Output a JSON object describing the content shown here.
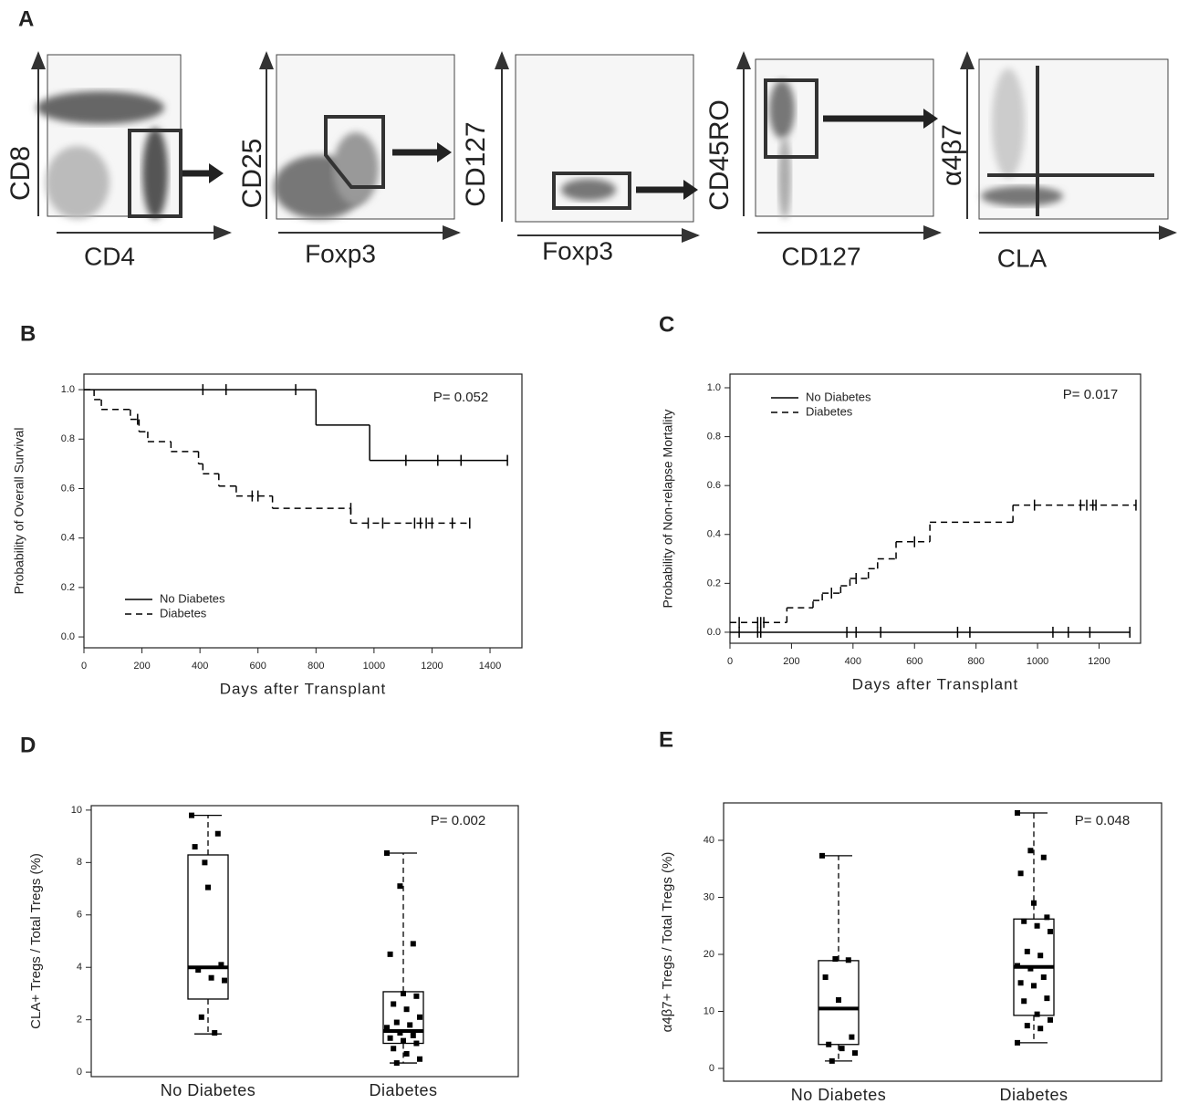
{
  "panel_a": {
    "panel": "A",
    "plots": [
      {
        "x_label": "CD4",
        "y_label": "CD8"
      },
      {
        "x_label": "Foxp3",
        "y_label": "CD25"
      },
      {
        "x_label": "Foxp3",
        "y_label": "CD127"
      },
      {
        "x_label": "CD127",
        "y_label": "CD45RO"
      },
      {
        "x_label": "CLA",
        "y_label": "α4β7"
      }
    ]
  },
  "chart_data": [
    {
      "type": "step",
      "panel": "B",
      "x_label": "Days after Transplant",
      "y_label": "Probability of Overall Survival",
      "annotation": "P= 0.052",
      "legend": "lower left",
      "xlim": [
        0,
        1510
      ],
      "ylim": [
        -0.044,
        1.063
      ],
      "xticks": [
        0,
        200,
        400,
        600,
        800,
        1000,
        1200,
        1400
      ],
      "yticks": [
        {
          "value": 0,
          "label": "0.0"
        },
        0.2,
        0.4,
        0.6,
        0.8,
        {
          "value": 1,
          "label": "1.0"
        }
      ],
      "series": [
        {
          "name": "No Diabetes",
          "color": "#000000",
          "line_style": "solid",
          "x": [
            0,
            800,
            985
          ],
          "values": [
            1,
            0.857,
            0.714
          ],
          "censored_x": [
            410,
            490,
            730,
            1110,
            1220,
            1300,
            1460
          ],
          "censored_values": [
            1,
            1,
            1,
            0.714,
            0.714,
            0.714,
            0.714
          ]
        },
        {
          "name": "Diabetes",
          "color": "#000000",
          "line_style": "dashed",
          "x": [
            0,
            35,
            60,
            160,
            190,
            220,
            300,
            395,
            410,
            465,
            525,
            650,
            920
          ],
          "values": [
            1,
            0.96,
            0.92,
            0.88,
            0.83,
            0.79,
            0.75,
            0.7,
            0.66,
            0.61,
            0.57,
            0.52,
            0.46
          ],
          "censored_x": [
            185,
            580,
            600,
            920,
            980,
            1030,
            1140,
            1160,
            1180,
            1200,
            1270,
            1330
          ],
          "censored_values": [
            0.88,
            0.57,
            0.57,
            0.52,
            0.46,
            0.46,
            0.46,
            0.46,
            0.46,
            0.46,
            0.46,
            0.46
          ]
        }
      ]
    },
    {
      "type": "step",
      "panel": "C",
      "x_label": "Days after Transplant",
      "y_label": "Probability of Non-relapse Mortality",
      "annotation": "P= 0.017",
      "legend": "upper left",
      "xlim": [
        0,
        1335
      ],
      "ylim": [
        -0.045,
        1.056
      ],
      "xticks": [
        0,
        200,
        400,
        600,
        800,
        1000,
        1200
      ],
      "yticks": [
        {
          "value": 0,
          "label": "0.0"
        },
        0.2,
        0.4,
        0.6,
        0.8,
        {
          "value": 1,
          "label": "1.0"
        }
      ],
      "series": [
        {
          "name": "No Diabetes",
          "color": "#000000",
          "line_style": "solid",
          "x": [
            0
          ],
          "values": [
            0
          ],
          "censored_x": [
            30,
            90,
            100,
            380,
            410,
            490,
            740,
            780,
            1050,
            1100,
            1170,
            1300
          ],
          "censored_values": [
            0,
            0,
            0,
            0,
            0,
            0,
            0,
            0,
            0,
            0,
            0,
            0
          ]
        },
        {
          "name": "Diabetes",
          "color": "#000000",
          "line_style": "dashed",
          "x": [
            0,
            185,
            270,
            300,
            360,
            390,
            450,
            480,
            540,
            650,
            920
          ],
          "values": [
            0.04,
            0.1,
            0.13,
            0.16,
            0.19,
            0.22,
            0.26,
            0.3,
            0.37,
            0.45,
            0.52
          ],
          "censored_x": [
            30,
            90,
            100,
            110,
            330,
            410,
            600,
            990,
            1140,
            1160,
            1180,
            1190,
            1320
          ],
          "censored_values": [
            0.04,
            0.04,
            0.04,
            0.04,
            0.16,
            0.22,
            0.37,
            0.52,
            0.52,
            0.52,
            0.52,
            0.52,
            0.52
          ]
        }
      ]
    },
    {
      "type": "box",
      "panel": "D",
      "y_label": "CLA+ Tregs / Total Tregs (%)",
      "annotation": "P= 0.002",
      "ylim": [
        -0.17,
        10.17
      ],
      "yticks": [
        0,
        2,
        4,
        6,
        8,
        10
      ],
      "categories": [
        "No Diabetes",
        "Diabetes"
      ],
      "boxes": [
        {
          "min": 1.46,
          "q1": 2.79,
          "median": 4.0,
          "q3": 8.29,
          "max": 9.8,
          "points": [
            9.8,
            8.0,
            9.1,
            8.6,
            7.05,
            4.1,
            3.9,
            3.6,
            3.5,
            2.1,
            1.5
          ]
        },
        {
          "min": 0.35,
          "q1": 1.1,
          "median": 1.57,
          "q3": 3.07,
          "max": 8.36,
          "points": [
            8.36,
            7.1,
            4.9,
            4.5,
            3.0,
            2.9,
            2.6,
            2.4,
            2.1,
            1.9,
            1.8,
            1.7,
            1.5,
            1.4,
            1.3,
            1.2,
            1.1,
            0.9,
            0.7,
            0.5,
            0.35
          ]
        }
      ]
    },
    {
      "type": "box",
      "panel": "E",
      "y_label": "α4β7+ Tregs / Total Tregs (%)",
      "annotation": "P= 0.048",
      "ylim": [
        -2.24,
        46.56
      ],
      "yticks": [
        0,
        10,
        20,
        30,
        40
      ],
      "categories": [
        "No Diabetes",
        "Diabetes"
      ],
      "boxes": [
        {
          "min": 1.3,
          "q1": 4.2,
          "median": 10.5,
          "q3": 18.9,
          "max": 37.3,
          "points": [
            37.3,
            19.2,
            19.0,
            16.0,
            12.0,
            5.5,
            4.2,
            3.5,
            2.7,
            1.3
          ]
        },
        {
          "min": 4.5,
          "q1": 9.3,
          "median": 17.8,
          "q3": 26.2,
          "max": 44.8,
          "points": [
            44.8,
            38.2,
            37.0,
            34.2,
            29.0,
            26.5,
            25.8,
            25.0,
            24.0,
            20.5,
            19.8,
            18.0,
            17.5,
            16.0,
            15.0,
            14.5,
            12.3,
            11.8,
            9.5,
            8.5,
            7.5,
            7.0,
            4.5
          ]
        }
      ]
    }
  ]
}
